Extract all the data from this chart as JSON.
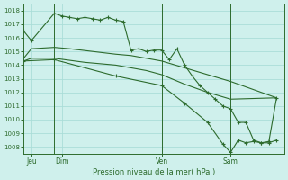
{
  "xlabel": "Pression niveau de la mer( hPa )",
  "bg_color": "#cff0ec",
  "grid_color": "#aaddd8",
  "line_color": "#2d6b2d",
  "ylim": [
    1007.5,
    1018.5
  ],
  "yticks": [
    1008,
    1009,
    1010,
    1011,
    1012,
    1013,
    1014,
    1015,
    1016,
    1017,
    1018
  ],
  "xmin": 0,
  "xmax": 34,
  "xtick_positions": [
    1,
    5,
    18,
    27
  ],
  "xtick_labels": [
    "Jeu",
    "Dim",
    "Ven",
    "Sam"
  ],
  "vlines": [
    4,
    18,
    27
  ],
  "line_main_x": [
    0,
    1,
    4,
    5,
    6,
    7,
    8,
    9,
    10,
    11,
    12,
    13,
    14,
    15,
    16,
    17,
    18,
    19,
    20,
    21,
    22,
    23,
    24,
    25,
    26,
    27,
    28,
    29,
    30,
    31,
    32,
    33
  ],
  "line_main_y": [
    1016.5,
    1015.8,
    1017.8,
    1017.6,
    1017.5,
    1017.4,
    1017.5,
    1017.4,
    1017.3,
    1017.5,
    1017.3,
    1017.2,
    1015.1,
    1015.2,
    1015.0,
    1015.1,
    1015.1,
    1014.4,
    1015.2,
    1014.0,
    1013.2,
    1012.5,
    1012.0,
    1011.5,
    1011.0,
    1010.8,
    1009.8,
    1009.8,
    1008.5,
    1008.3,
    1008.3,
    1008.5
  ],
  "line_upper_x": [
    0,
    1,
    4,
    6,
    9,
    12,
    14,
    16,
    18,
    21,
    24,
    27,
    33
  ],
  "line_upper_y": [
    1014.5,
    1015.2,
    1015.3,
    1015.2,
    1015.0,
    1014.8,
    1014.7,
    1014.5,
    1014.3,
    1013.8,
    1013.3,
    1012.8,
    1011.6
  ],
  "line_mid_x": [
    0,
    1,
    4,
    8,
    12,
    16,
    18,
    21,
    24,
    27,
    33
  ],
  "line_mid_y": [
    1014.3,
    1014.5,
    1014.5,
    1014.2,
    1014.0,
    1013.6,
    1013.3,
    1012.6,
    1012.0,
    1011.5,
    1011.6
  ],
  "line_lower_x": [
    0,
    4,
    12,
    18,
    21,
    24,
    26,
    27,
    28,
    29,
    30,
    31,
    32,
    33
  ],
  "line_lower_y": [
    1014.3,
    1014.4,
    1013.2,
    1012.5,
    1011.2,
    1009.8,
    1008.2,
    1007.6,
    1008.5,
    1008.3,
    1008.4,
    1008.3,
    1008.4,
    1011.6
  ]
}
